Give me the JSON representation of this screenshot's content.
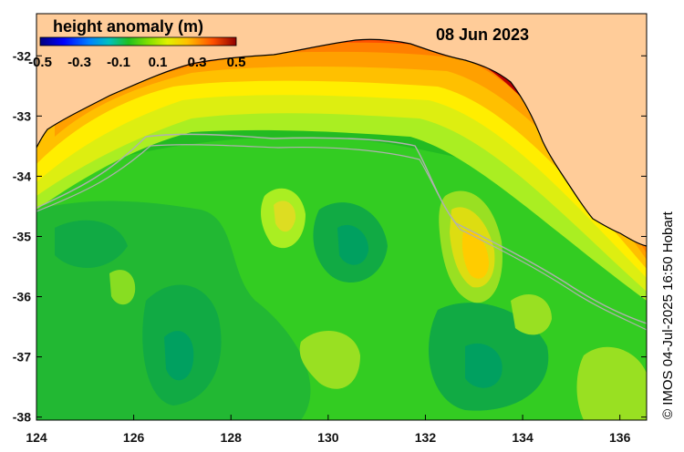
{
  "map": {
    "title": "height anomaly (m)",
    "date": "08 Jun 2023",
    "credit": "© IMOS 04-Jul-2025 16:50 Hobart",
    "colorbar": {
      "tick_labels": [
        "-0.5",
        "-0.3",
        "-0.1",
        "0.1",
        "0.3",
        "0.5"
      ],
      "range": [
        -0.5,
        0.5
      ],
      "colors": [
        "#00007f",
        "#0000ff",
        "#0080ff",
        "#00c8c8",
        "#00c040",
        "#40e000",
        "#c0f000",
        "#ffff00",
        "#ffa000",
        "#ff5000",
        "#d00000",
        "#800000"
      ]
    },
    "x_axis": {
      "ticks": [
        124,
        126,
        128,
        130,
        132,
        134,
        136
      ],
      "labels": [
        "124",
        "126",
        "128",
        "130",
        "132",
        "134",
        "136"
      ]
    },
    "y_axis": {
      "ticks": [
        -32,
        -33,
        -34,
        -35,
        -36,
        -37,
        -38
      ],
      "labels": [
        "-32",
        "-33",
        "-34",
        "-35",
        "-36",
        "-37",
        "-38"
      ]
    },
    "colors": {
      "land": "#ffcc99",
      "ocean_base": "#22cc22",
      "anomaly_high": "#cc2200",
      "anomaly_mid": "#ffcc00",
      "anomaly_low": "#009944",
      "isobath": "#aaaaaa"
    }
  }
}
